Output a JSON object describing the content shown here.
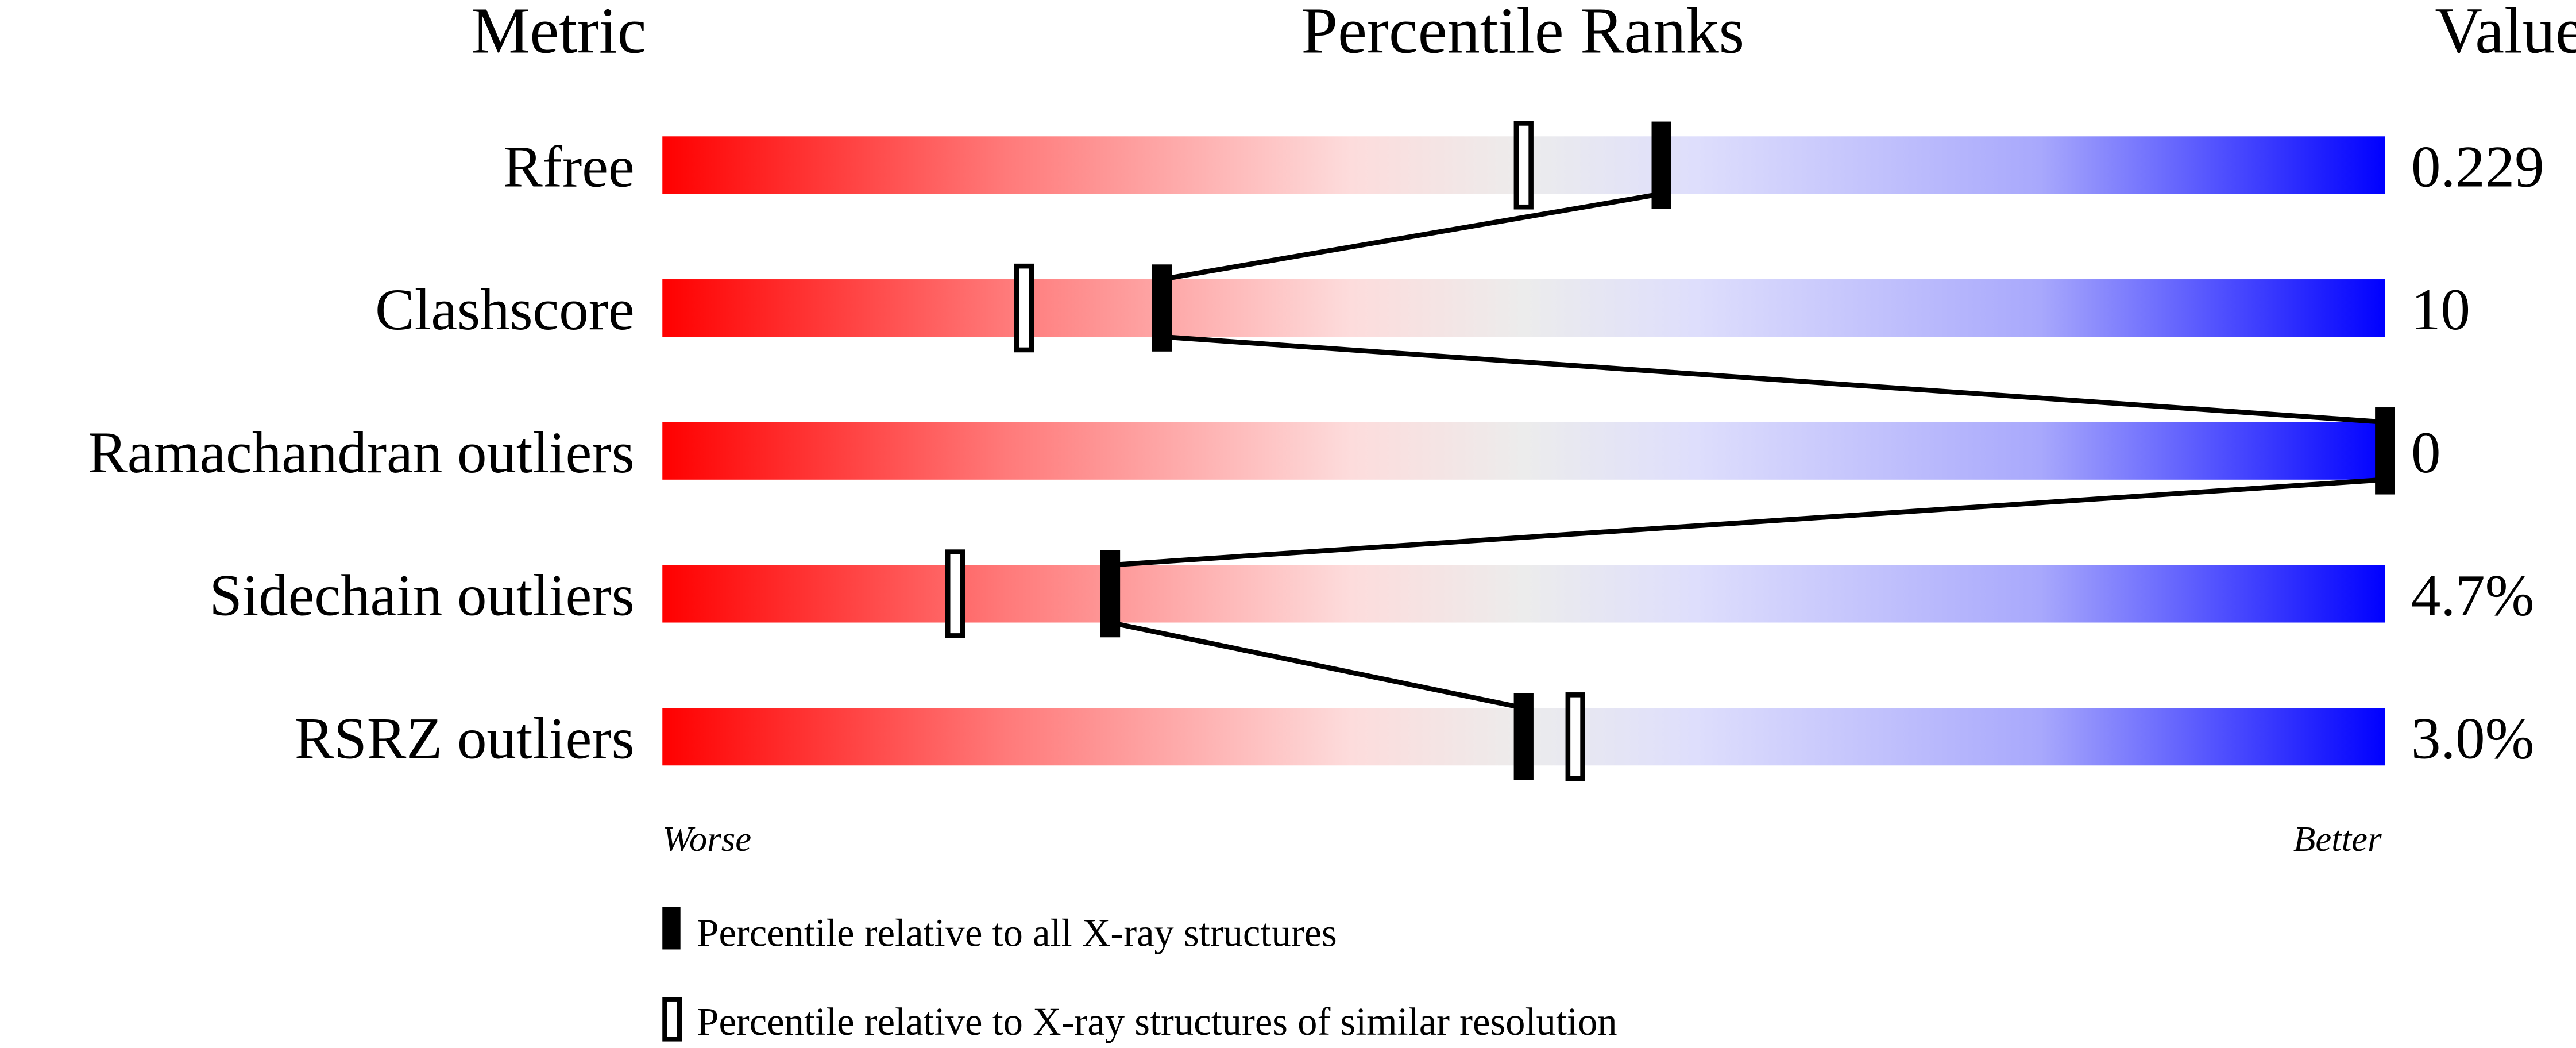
{
  "chart_data": {
    "type": "percentile-slider",
    "headers": {
      "metric": "Metric",
      "ranks": "Percentile Ranks",
      "value": "Value"
    },
    "xlim": [
      0,
      100
    ],
    "scale_labels": {
      "worse": "Worse",
      "better": "Better"
    },
    "gradient_colors": [
      "#ff0000",
      "#fddcdc",
      "#ececec",
      "#dedefc",
      "#0000ff"
    ],
    "metrics": [
      {
        "name": "Rfree",
        "value": "0.229",
        "percentile_all": 58,
        "percentile_similar": 50
      },
      {
        "name": "Clashscore",
        "value": "10",
        "percentile_all": 29,
        "percentile_similar": 21
      },
      {
        "name": "Ramachandran outliers",
        "value": "0",
        "percentile_all": 100,
        "percentile_similar": null
      },
      {
        "name": "Sidechain outliers",
        "value": "4.7%",
        "percentile_all": 26,
        "percentile_similar": 17
      },
      {
        "name": "RSRZ outliers",
        "value": "3.0%",
        "percentile_all": 50,
        "percentile_similar": 53
      }
    ],
    "legend": {
      "all": "Percentile relative to all X-ray structures",
      "similar": "Percentile relative to X-ray structures of similar resolution"
    }
  }
}
